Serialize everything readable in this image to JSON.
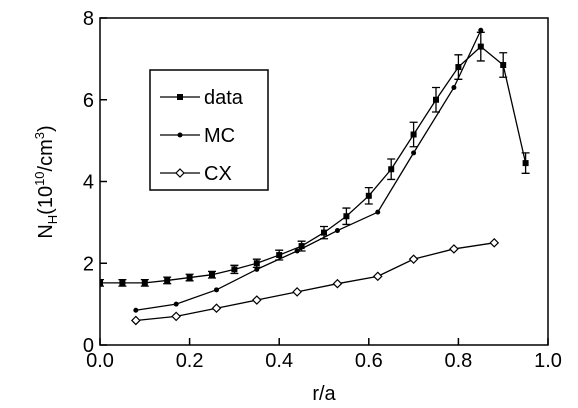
{
  "chart_data": {
    "type": "line",
    "x_label": "r/a",
    "y_label": {
      "main": "N",
      "sub": "H",
      "open": "(10",
      "sup1": "10",
      "mid": "/cm",
      "sup2": "3",
      "close": ")"
    },
    "xlim": [
      0,
      1
    ],
    "ylim": [
      0,
      8
    ],
    "xticks": [
      {
        "value": 0,
        "label": "0.0"
      },
      0.2,
      0.4,
      0.6,
      0.8,
      {
        "value": 1,
        "label": "1.0"
      }
    ],
    "yticks": [
      0,
      2,
      4,
      6,
      8
    ],
    "series": [
      {
        "name": "data",
        "color": "#000000",
        "marker": "square",
        "x": [
          0,
          0.05,
          0.1,
          0.15,
          0.2,
          0.25,
          0.3,
          0.35,
          0.4,
          0.45,
          0.5,
          0.55,
          0.6,
          0.65,
          0.7,
          0.75,
          0.8,
          0.85,
          0.9,
          0.95
        ],
        "values": [
          1.52,
          1.52,
          1.52,
          1.58,
          1.65,
          1.72,
          1.85,
          2.0,
          2.2,
          2.42,
          2.75,
          3.15,
          3.65,
          4.3,
          5.15,
          6.0,
          6.8,
          7.3,
          6.85,
          4.45
        ],
        "errors": [
          0.08,
          0.08,
          0.08,
          0.08,
          0.08,
          0.08,
          0.1,
          0.1,
          0.12,
          0.12,
          0.15,
          0.2,
          0.2,
          0.25,
          0.3,
          0.3,
          0.3,
          0.35,
          0.3,
          0.25
        ]
      },
      {
        "name": "MC",
        "color": "#000000",
        "marker": "dot",
        "x": [
          0.08,
          0.17,
          0.26,
          0.35,
          0.44,
          0.53,
          0.62,
          0.7,
          0.79,
          0.85
        ],
        "values": [
          0.85,
          1.0,
          1.35,
          1.85,
          2.3,
          2.8,
          3.25,
          4.7,
          6.3,
          7.7
        ]
      },
      {
        "name": "CX",
        "color": "#000000",
        "marker": "diamond",
        "x": [
          0.08,
          0.17,
          0.26,
          0.35,
          0.44,
          0.53,
          0.62,
          0.7,
          0.79,
          0.88
        ],
        "values": [
          0.6,
          0.7,
          0.9,
          1.1,
          1.3,
          1.5,
          1.68,
          2.1,
          2.35,
          2.5
        ]
      }
    ]
  }
}
